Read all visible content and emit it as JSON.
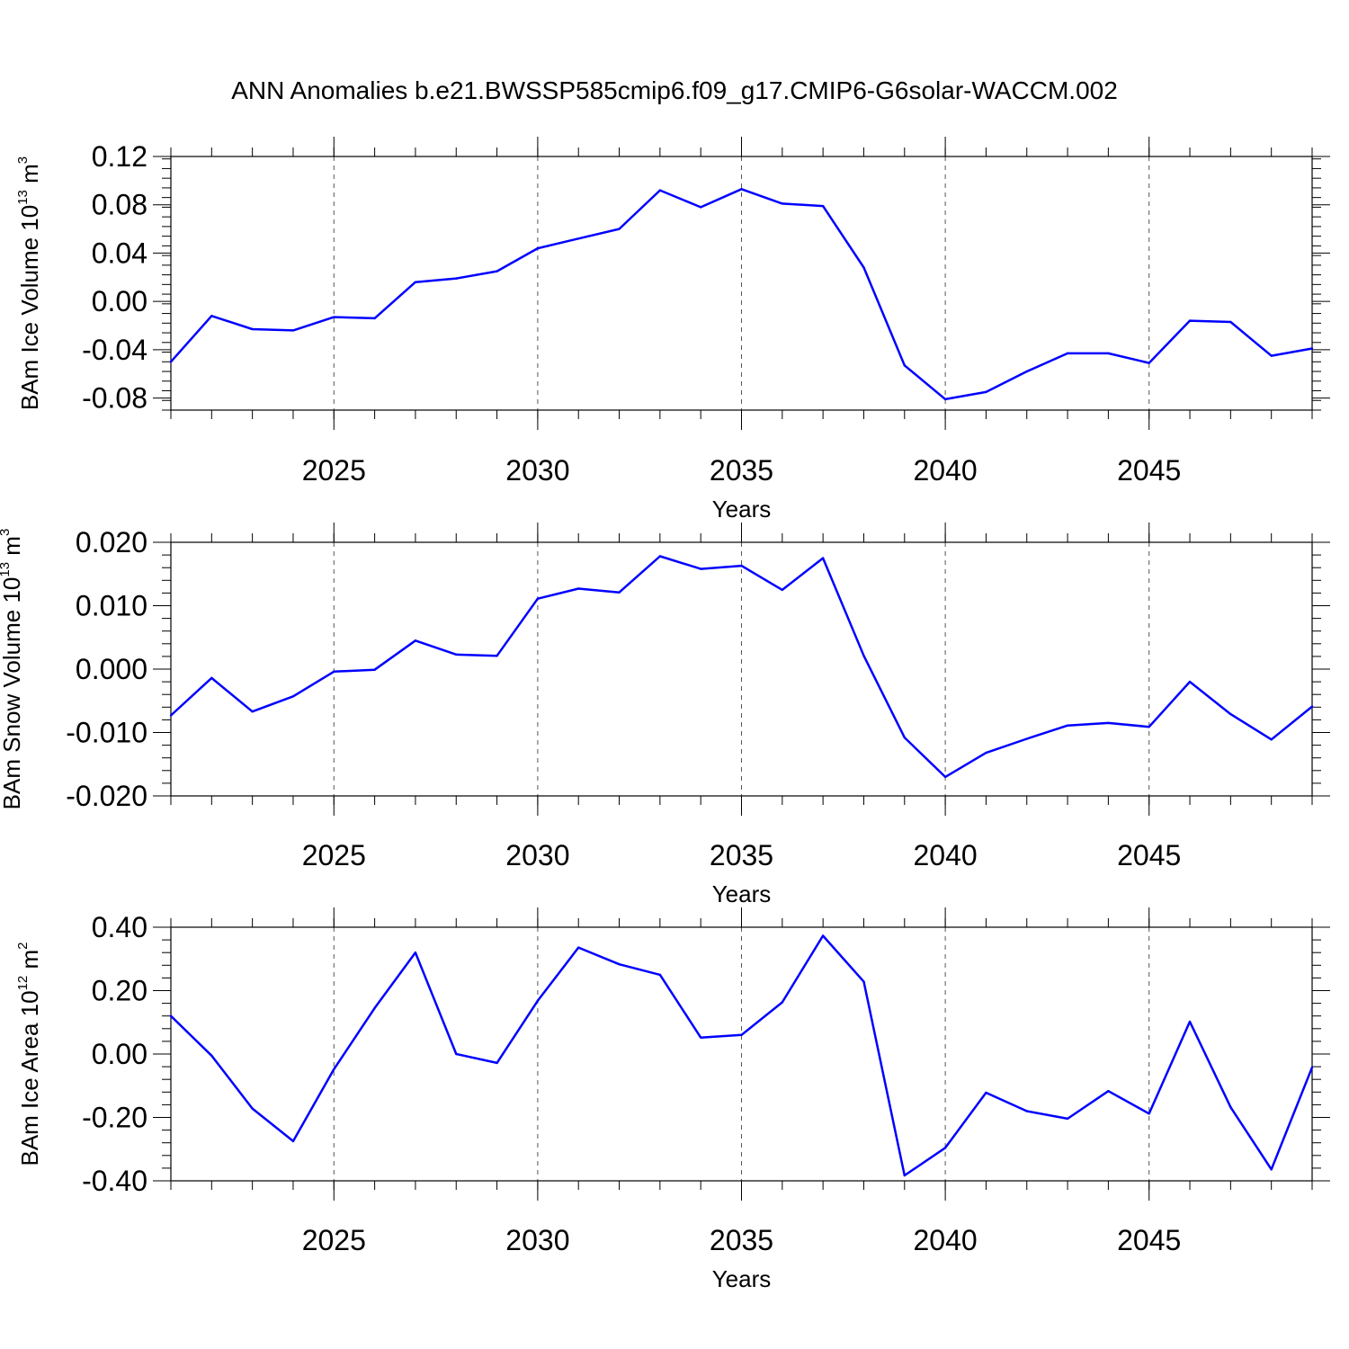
{
  "title": "ANN Anomalies b.e21.BWSSP585cmip6.f09_g17.CMIP6-G6solar-WACCM.002",
  "colors": {
    "line": "#0000ff",
    "axis": "#000000",
    "grid": "#555555"
  },
  "chart_data": [
    {
      "type": "line",
      "xlabel": "Years",
      "ylabel": {
        "main": "BAm Ice Volume 10",
        "exp": "13",
        "unit": " m",
        "unit_exp": "3"
      },
      "xlim": [
        2021,
        2049
      ],
      "ylim": [
        -0.09,
        0.12
      ],
      "major_yticks": [
        -0.08,
        -0.04,
        0.0,
        0.04,
        0.08,
        0.12
      ],
      "major_ytick_labels": [
        "-0.08",
        "-0.04",
        "0.00",
        "0.04",
        "0.08",
        "0.12"
      ],
      "minor_ytick_step": 0.008,
      "major_xticks": [
        2025,
        2030,
        2035,
        2040,
        2045
      ],
      "major_xtick_labels": [
        "2025",
        "2030",
        "2035",
        "2040",
        "2045"
      ],
      "grid": "dashed vertical at major x ticks",
      "x": [
        2021,
        2022,
        2023,
        2024,
        2025,
        2026,
        2027,
        2028,
        2029,
        2030,
        2031,
        2032,
        2033,
        2034,
        2035,
        2036,
        2037,
        2038,
        2039,
        2040,
        2041,
        2042,
        2043,
        2044,
        2045,
        2046,
        2047,
        2048,
        2049
      ],
      "values": [
        -0.05,
        -0.012,
        -0.023,
        -0.024,
        -0.013,
        -0.014,
        0.016,
        0.019,
        0.025,
        0.044,
        0.052,
        0.06,
        0.092,
        0.078,
        0.093,
        0.081,
        0.079,
        0.028,
        -0.053,
        -0.081,
        -0.075,
        -0.058,
        -0.043,
        -0.043,
        -0.051,
        -0.016,
        -0.017,
        -0.045,
        -0.039
      ]
    },
    {
      "type": "line",
      "xlabel": "Years",
      "ylabel": {
        "main": "BAm Snow Volume 10",
        "exp": "13",
        "unit": " m",
        "unit_exp": "3"
      },
      "xlim": [
        2021,
        2049
      ],
      "ylim": [
        -0.02,
        0.02
      ],
      "major_yticks": [
        -0.02,
        -0.01,
        0.0,
        0.01,
        0.02
      ],
      "major_ytick_labels": [
        "-0.020",
        "-0.010",
        "0.000",
        "0.010",
        "0.020"
      ],
      "minor_ytick_step": 0.002,
      "major_xticks": [
        2025,
        2030,
        2035,
        2040,
        2045
      ],
      "major_xtick_labels": [
        "2025",
        "2030",
        "2035",
        "2040",
        "2045"
      ],
      "grid": "dashed vertical at major x ticks",
      "x": [
        2021,
        2022,
        2023,
        2024,
        2025,
        2026,
        2027,
        2028,
        2029,
        2030,
        2031,
        2032,
        2033,
        2034,
        2035,
        2036,
        2037,
        2038,
        2039,
        2040,
        2041,
        2042,
        2043,
        2044,
        2045,
        2046,
        2047,
        2048,
        2049
      ],
      "values": [
        -0.0073,
        -0.0014,
        -0.0067,
        -0.0043,
        -0.0004,
        -0.0001,
        0.0045,
        0.0023,
        0.0021,
        0.0111,
        0.0127,
        0.0121,
        0.0178,
        0.0158,
        0.0163,
        0.0125,
        0.0175,
        0.0021,
        -0.0108,
        -0.017,
        -0.0132,
        -0.011,
        -0.0089,
        -0.0085,
        -0.0091,
        -0.002,
        -0.0071,
        -0.0111,
        -0.0059
      ]
    },
    {
      "type": "line",
      "xlabel": "Years",
      "ylabel": {
        "main": "BAm Ice Area 10",
        "exp": "12",
        "unit": " m",
        "unit_exp": "2"
      },
      "xlim": [
        2021,
        2049
      ],
      "ylim": [
        -0.4,
        0.4
      ],
      "major_yticks": [
        -0.4,
        -0.2,
        0.0,
        0.2,
        0.4
      ],
      "major_ytick_labels": [
        "-0.40",
        "-0.20",
        "0.00",
        "0.20",
        "0.40"
      ],
      "minor_ytick_step": 0.04,
      "major_xticks": [
        2025,
        2030,
        2035,
        2040,
        2045
      ],
      "major_xtick_labels": [
        "2025",
        "2030",
        "2035",
        "2040",
        "2045"
      ],
      "grid": "dashed vertical at major x ticks",
      "x": [
        2021,
        2022,
        2023,
        2024,
        2025,
        2026,
        2027,
        2028,
        2029,
        2030,
        2031,
        2032,
        2033,
        2034,
        2035,
        2036,
        2037,
        2038,
        2039,
        2040,
        2041,
        2042,
        2043,
        2044,
        2045,
        2046,
        2047,
        2048,
        2049
      ],
      "values": [
        0.12,
        -0.005,
        -0.172,
        -0.275,
        -0.048,
        0.145,
        0.32,
        0.0,
        -0.028,
        0.168,
        0.336,
        0.283,
        0.25,
        0.052,
        0.06,
        0.163,
        0.373,
        0.228,
        -0.383,
        -0.296,
        -0.122,
        -0.18,
        -0.204,
        -0.117,
        -0.188,
        0.102,
        -0.168,
        -0.364,
        -0.042
      ]
    }
  ]
}
